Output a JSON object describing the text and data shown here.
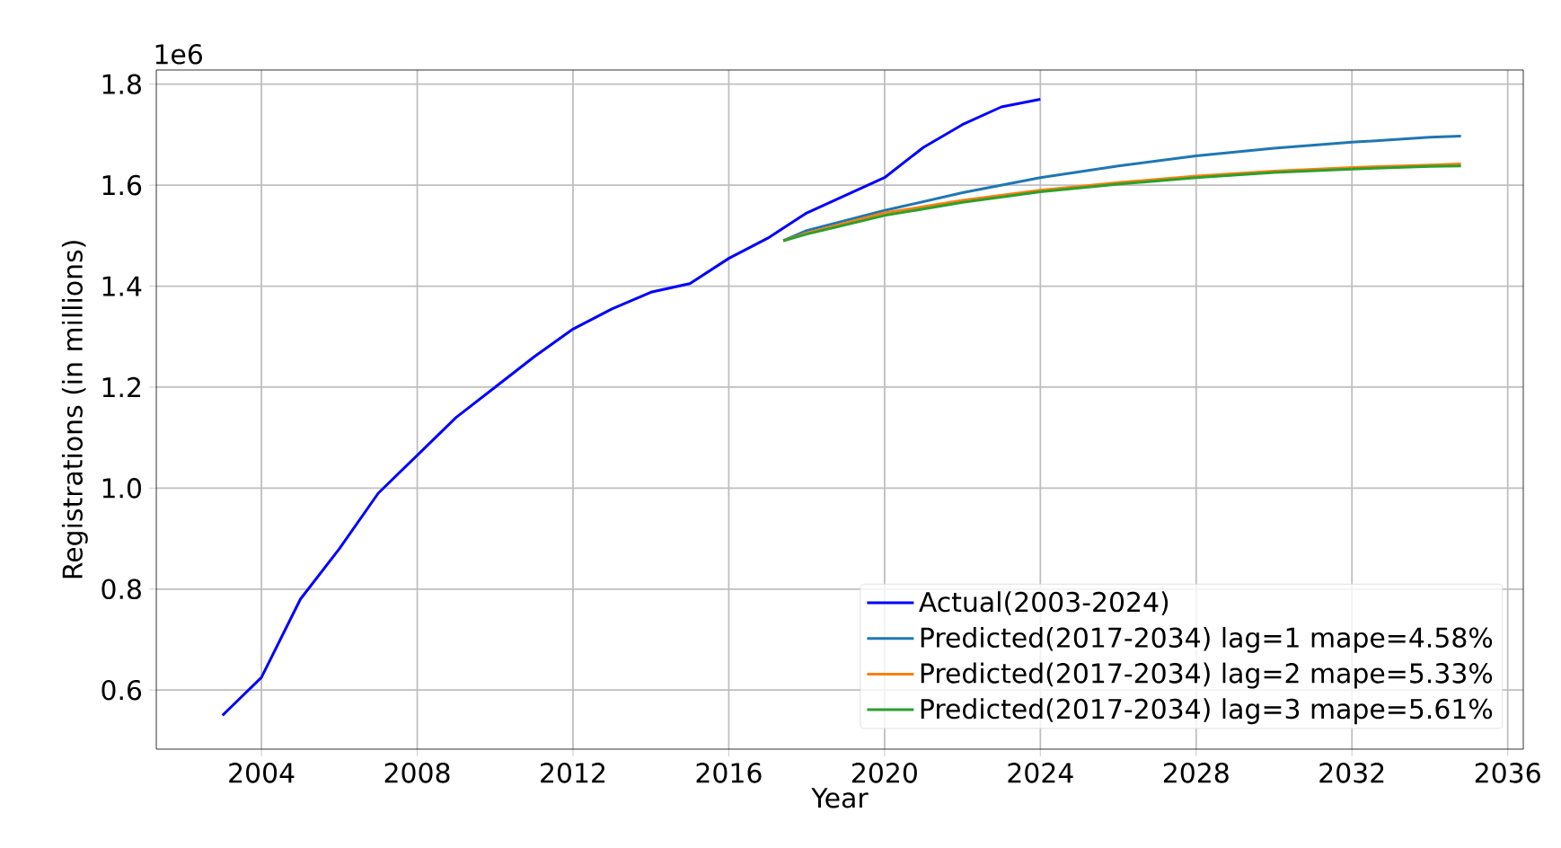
{
  "chart_data": {
    "type": "line",
    "xlabel": "Year",
    "ylabel": "Registrations (in millions)",
    "annotations": [
      "1e6"
    ],
    "xlim": [
      2001.3,
      2036.4
    ],
    "ylim": [
      0.483,
      1.828
    ],
    "xticks": [
      2004,
      2008,
      2012,
      2016,
      2020,
      2024,
      2028,
      2032,
      2036
    ],
    "yticks": [
      0.6,
      0.8,
      {
        "value": 1.0,
        "label": "1.0"
      },
      1.2,
      1.4,
      1.6,
      1.8
    ],
    "grid": true,
    "legend": "bottom right",
    "line_style": "solid",
    "marker": "none",
    "series": [
      {
        "name": "Actual(2003-2024)",
        "color": "#0000ff",
        "x": [
          2003,
          2004,
          2005,
          2006,
          2007,
          2008,
          2009,
          2010,
          2011,
          2012,
          2013,
          2014,
          2015,
          2016,
          2017,
          2018,
          2019,
          2020,
          2021,
          2022,
          2023,
          2024
        ],
        "values": [
          0.55,
          0.625,
          0.78,
          0.88,
          0.99,
          1.065,
          1.14,
          1.2,
          1.26,
          1.315,
          1.355,
          1.388,
          1.405,
          1.455,
          1.495,
          1.545,
          1.58,
          1.615,
          1.675,
          1.72,
          1.755,
          1.77
        ]
      },
      {
        "name": "Predicted(2017-2034) lag=1 mape=4.58%",
        "color": "#1f77b4",
        "x": [
          2017.4,
          2018,
          2020,
          2022,
          2024,
          2026,
          2028,
          2030,
          2032,
          2034,
          2034.8
        ],
        "values": [
          1.49,
          1.51,
          1.55,
          1.585,
          1.615,
          1.638,
          1.658,
          1.673,
          1.685,
          1.695,
          1.697
        ]
      },
      {
        "name": "Predicted(2017-2034) lag=2 mape=5.33%",
        "color": "#ff7f0e",
        "x": [
          2017.4,
          2018,
          2020,
          2022,
          2024,
          2026,
          2028,
          2030,
          2032,
          2034,
          2034.8
        ],
        "values": [
          1.49,
          1.505,
          1.545,
          1.57,
          1.59,
          1.605,
          1.618,
          1.628,
          1.635,
          1.64,
          1.642
        ]
      },
      {
        "name": "Predicted(2017-2034) lag=3 mape=5.61%",
        "color": "#2ca02c",
        "x": [
          2017.4,
          2018,
          2020,
          2022,
          2024,
          2026,
          2028,
          2030,
          2032,
          2034,
          2034.8
        ],
        "values": [
          1.49,
          1.503,
          1.54,
          1.566,
          1.587,
          1.602,
          1.615,
          1.625,
          1.632,
          1.637,
          1.638
        ]
      }
    ]
  }
}
